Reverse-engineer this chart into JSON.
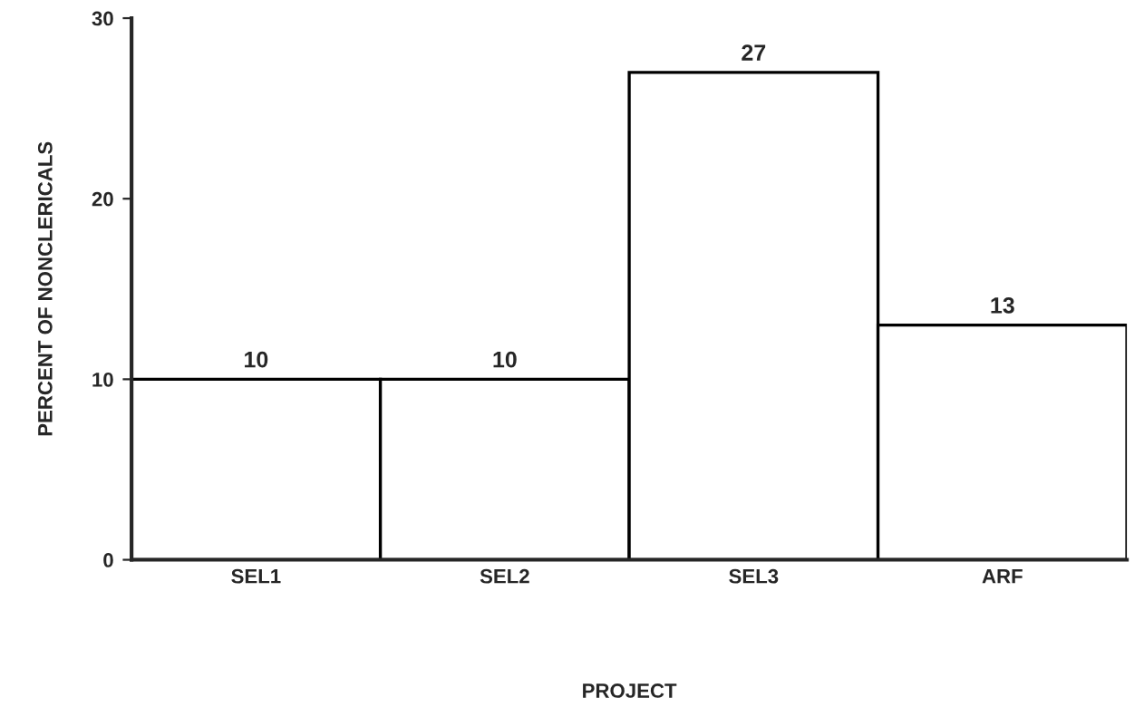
{
  "chart_data": {
    "type": "bar",
    "xlabel": "PROJECT",
    "ylabel": "PERCENT OF NONCLERICALS",
    "categories": [
      "SEL1",
      "SEL2",
      "SEL3",
      "ARF"
    ],
    "values": [
      10,
      10,
      27,
      13
    ],
    "color": "#ffffff",
    "data_labels": true,
    "ylim": [
      0,
      30
    ],
    "yticks": [
      0,
      10,
      20,
      30
    ],
    "grid": false,
    "legend": false
  }
}
